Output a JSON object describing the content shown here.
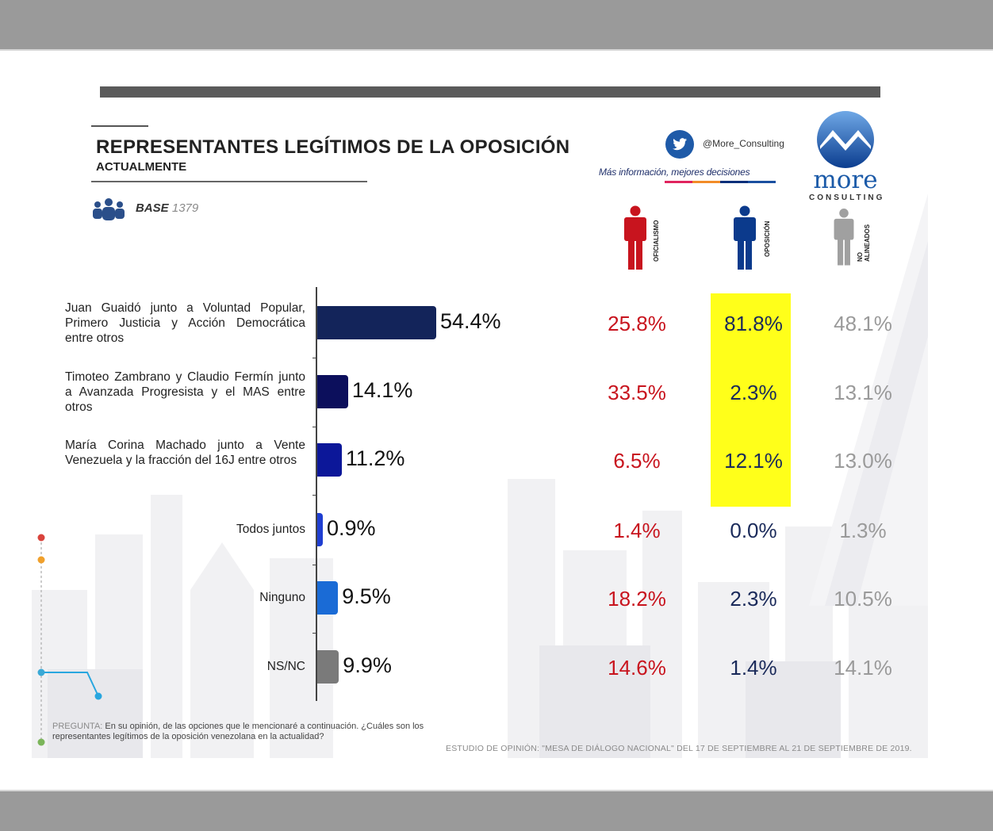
{
  "header": {
    "title": "REPRESENTANTES LEGÍTIMOS DE LA OPOSICIÓN",
    "subtitle": "ACTUALMENTE",
    "base_label": "BASE",
    "base_value": "1379"
  },
  "brand": {
    "twitter_handle": "@More_Consulting",
    "tagline": "Más información, mejores decisiones",
    "logo_word": "more",
    "logo_sub": "CONSULTING",
    "icons": [
      "group-icon",
      "twitter-icon",
      "more-consulting-logo"
    ]
  },
  "segments": [
    {
      "label": "OFICIALISMO",
      "color": "#c8141e"
    },
    {
      "label": "OPOSICIÓN",
      "color": "#0b3a8c"
    },
    {
      "label": "NO ALINEADOS",
      "color": "#a0a0a0"
    }
  ],
  "chart_data": {
    "type": "bar",
    "orientation": "horizontal",
    "categories": [
      "Juan Guaidó junto a Voluntad Popular, Primero Justicia y Acción Democrática entre otros",
      "Timoteo Zambrano y Claudio Fermín junto a Avanzada Progresista y el MAS entre otros",
      "María Corina Machado junto a Vente Venezuela y la fracción del 16J entre otros",
      "Todos juntos",
      "Ninguno",
      "NS/NC"
    ],
    "values": [
      54.4,
      14.1,
      11.2,
      0.9,
      9.5,
      9.9
    ],
    "value_labels": [
      "54.4%",
      "14.1%",
      "11.2%",
      "0.9%",
      "9.5%",
      "9.9%"
    ],
    "bar_colors": [
      "#13245a",
      "#0c0f5c",
      "#0c1799",
      "#1f3ed1",
      "#1a6bd6",
      "#7a7a7a"
    ],
    "xlim": [
      0,
      100
    ],
    "segment_table": {
      "columns": [
        "OFICIALISMO",
        "OPOSICIÓN",
        "NO ALINEADOS"
      ],
      "values": [
        [
          "25.8%",
          "81.8%",
          "48.1%"
        ],
        [
          "33.5%",
          "2.3%",
          "13.1%"
        ],
        [
          "6.5%",
          "12.1%",
          "13.0%"
        ],
        [
          "1.4%",
          "0.0%",
          "1.3%"
        ],
        [
          "18.2%",
          "2.3%",
          "10.5%"
        ],
        [
          "14.6%",
          "1.4%",
          "14.1%"
        ]
      ],
      "highlight_column": "OPOSICIÓN",
      "highlight_rows": [
        0,
        1,
        2
      ],
      "highlight_color": "#ffff1a"
    }
  },
  "footer": {
    "question_label": "PREGUNTA:",
    "question_text": "En su opinión, de las opciones que le mencionaré a continuación. ¿Cuáles son los representantes legítimos de la oposición venezolana en la actualidad?",
    "source": "ESTUDIO DE OPINIÓN: \"MESA DE DIÁLOGO NACIONAL\" DEL 17 DE SEPTIEMBRE AL 21 DE SEPTIEMBRE DE 2019."
  }
}
